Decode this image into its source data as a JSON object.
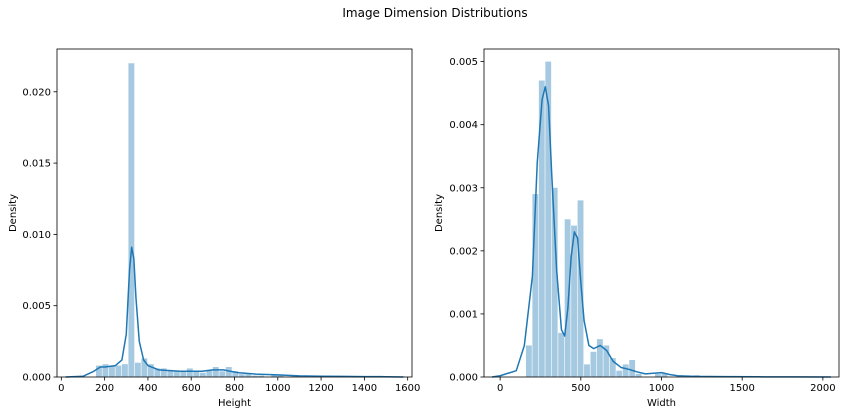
{
  "suptitle": "Image Dimension Distributions",
  "colors": {
    "hist": "#1f77b4",
    "hist_alpha": 0.4,
    "kde": "#1f77b4"
  },
  "chart_data": [
    {
      "type": "histogram+kde",
      "xlabel": "Height",
      "ylabel": "Density",
      "xlim": [
        -20,
        1620
      ],
      "ylim": [
        0,
        0.023
      ],
      "xticks": [
        0,
        200,
        400,
        600,
        800,
        1000,
        1200,
        1400,
        1600
      ],
      "yticks": [
        0.0,
        0.005,
        0.01,
        0.015,
        0.02
      ],
      "ytick_labels": [
        "0.000",
        "0.005",
        "0.010",
        "0.015",
        "0.020"
      ],
      "bins": [
        {
          "x0": 160,
          "x1": 190,
          "y": 0.0008
        },
        {
          "x0": 190,
          "x1": 220,
          "y": 0.0009
        },
        {
          "x0": 220,
          "x1": 250,
          "y": 0.0008
        },
        {
          "x0": 250,
          "x1": 280,
          "y": 0.0008
        },
        {
          "x0": 280,
          "x1": 310,
          "y": 0.0009
        },
        {
          "x0": 310,
          "x1": 340,
          "y": 0.022
        },
        {
          "x0": 340,
          "x1": 370,
          "y": 0.001
        },
        {
          "x0": 370,
          "x1": 400,
          "y": 0.0013
        },
        {
          "x0": 400,
          "x1": 430,
          "y": 0.0009
        },
        {
          "x0": 430,
          "x1": 460,
          "y": 0.0006
        },
        {
          "x0": 460,
          "x1": 490,
          "y": 0.0006
        },
        {
          "x0": 490,
          "x1": 520,
          "y": 0.0005
        },
        {
          "x0": 520,
          "x1": 550,
          "y": 0.0004
        },
        {
          "x0": 550,
          "x1": 580,
          "y": 0.0004
        },
        {
          "x0": 580,
          "x1": 610,
          "y": 0.0006
        },
        {
          "x0": 610,
          "x1": 640,
          "y": 0.0004
        },
        {
          "x0": 640,
          "x1": 670,
          "y": 0.0003
        },
        {
          "x0": 670,
          "x1": 700,
          "y": 0.0005
        },
        {
          "x0": 700,
          "x1": 730,
          "y": 0.0007
        },
        {
          "x0": 730,
          "x1": 760,
          "y": 0.0004
        },
        {
          "x0": 760,
          "x1": 790,
          "y": 0.0007
        },
        {
          "x0": 790,
          "x1": 820,
          "y": 0.0004
        },
        {
          "x0": 820,
          "x1": 850,
          "y": 0.0002
        },
        {
          "x0": 850,
          "x1": 880,
          "y": 0.0002
        },
        {
          "x0": 880,
          "x1": 910,
          "y": 0.0001
        },
        {
          "x0": 910,
          "x1": 940,
          "y": 0.0001
        },
        {
          "x0": 970,
          "x1": 1000,
          "y": 0.0002
        },
        {
          "x0": 1000,
          "x1": 1030,
          "y": 0.0001
        },
        {
          "x0": 1060,
          "x1": 1090,
          "y": 5e-05
        },
        {
          "x0": 1180,
          "x1": 1210,
          "y": 5e-05
        },
        {
          "x0": 1400,
          "x1": 1430,
          "y": 4e-05
        },
        {
          "x0": 1560,
          "x1": 1590,
          "y": 4e-05
        }
      ],
      "kde": {
        "x": [
          20,
          100,
          150,
          180,
          200,
          250,
          280,
          300,
          315,
          325,
          335,
          345,
          360,
          380,
          400,
          450,
          500,
          550,
          600,
          650,
          700,
          750,
          780,
          820,
          900,
          1000,
          1100,
          1200,
          1300,
          1400,
          1500,
          1580
        ],
        "y": [
          0,
          5e-05,
          0.0004,
          0.0007,
          0.0007,
          0.0008,
          0.0012,
          0.003,
          0.0075,
          0.0091,
          0.0083,
          0.0055,
          0.0025,
          0.0012,
          0.0008,
          0.0005,
          0.00045,
          0.0004,
          0.0004,
          0.0004,
          0.0005,
          0.0005,
          0.0004,
          0.0003,
          0.0002,
          0.00015,
          8e-05,
          5e-05,
          4e-05,
          3e-05,
          2e-05,
          0
        ]
      }
    },
    {
      "type": "histogram+kde",
      "xlabel": "Width",
      "ylabel": "Density",
      "xlim": [
        -100,
        2100
      ],
      "ylim": [
        0,
        0.0052
      ],
      "xticks": [
        0,
        500,
        1000,
        1500,
        2000
      ],
      "yticks": [
        0.0,
        0.001,
        0.002,
        0.003,
        0.004,
        0.005
      ],
      "ytick_labels": [
        "0.000",
        "0.001",
        "0.002",
        "0.003",
        "0.004",
        "0.005"
      ],
      "bins": [
        {
          "x0": 160,
          "x1": 200,
          "y": 0.0005
        },
        {
          "x0": 200,
          "x1": 240,
          "y": 0.0029
        },
        {
          "x0": 240,
          "x1": 280,
          "y": 0.0047
        },
        {
          "x0": 280,
          "x1": 320,
          "y": 0.005
        },
        {
          "x0": 320,
          "x1": 360,
          "y": 0.003
        },
        {
          "x0": 360,
          "x1": 400,
          "y": 0.0007
        },
        {
          "x0": 400,
          "x1": 440,
          "y": 0.0025
        },
        {
          "x0": 440,
          "x1": 480,
          "y": 0.0024
        },
        {
          "x0": 480,
          "x1": 520,
          "y": 0.0028
        },
        {
          "x0": 520,
          "x1": 560,
          "y": 0.0002
        },
        {
          "x0": 560,
          "x1": 600,
          "y": 0.0004
        },
        {
          "x0": 600,
          "x1": 640,
          "y": 0.0006
        },
        {
          "x0": 640,
          "x1": 680,
          "y": 0.0005
        },
        {
          "x0": 680,
          "x1": 720,
          "y": 0.0003
        },
        {
          "x0": 720,
          "x1": 760,
          "y": 0.0001
        },
        {
          "x0": 760,
          "x1": 800,
          "y": 0.0002
        },
        {
          "x0": 800,
          "x1": 840,
          "y": 0.00027
        },
        {
          "x0": 840,
          "x1": 880,
          "y": 5e-05
        },
        {
          "x0": 960,
          "x1": 1000,
          "y": 5e-05
        },
        {
          "x0": 1000,
          "x1": 1040,
          "y": 6e-05
        },
        {
          "x0": 1200,
          "x1": 1240,
          "y": 3e-05
        }
      ],
      "kde": {
        "x": [
          -50,
          0,
          100,
          150,
          200,
          230,
          260,
          280,
          300,
          320,
          350,
          380,
          400,
          420,
          440,
          460,
          480,
          500,
          520,
          550,
          580,
          620,
          660,
          700,
          750,
          800,
          850,
          900,
          950,
          1000,
          1050,
          1100,
          1200,
          1400,
          1600,
          1800,
          2050
        ],
        "y": [
          0,
          2e-05,
          0.0001,
          0.0005,
          0.0016,
          0.0034,
          0.0044,
          0.0046,
          0.0043,
          0.0032,
          0.0017,
          0.00075,
          0.00065,
          0.0011,
          0.0019,
          0.0023,
          0.0022,
          0.0015,
          0.0009,
          0.0005,
          0.00045,
          0.0005,
          0.00042,
          0.00025,
          0.00015,
          0.00012,
          8e-05,
          5e-05,
          6e-05,
          7e-05,
          4e-05,
          2e-05,
          1e-05,
          5e-06,
          3e-06,
          2e-06,
          0
        ]
      }
    }
  ]
}
